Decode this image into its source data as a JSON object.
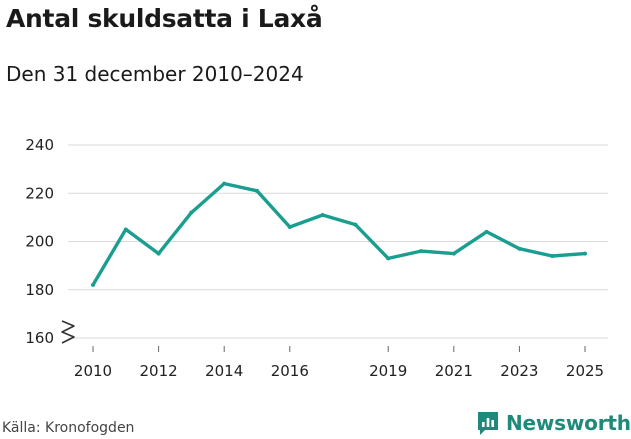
{
  "header": {
    "title": "Antal skuldsatta i Laxå",
    "subtitle": "Den 31 december 2010–2024"
  },
  "footer": {
    "source": "Källa: Kronofogden",
    "brand": "Newsworthy",
    "brand_icon": "newsworthy-logo-icon"
  },
  "colors": {
    "line": "#1a9e8f",
    "grid": "#d9d9d9",
    "brand": "#1f8a7a"
  },
  "chart_data": {
    "type": "line",
    "title": "Antal skuldsatta i Laxå",
    "subtitle": "Den 31 december 2010–2024",
    "x": [
      2010,
      2011,
      2012,
      2013,
      2014,
      2015,
      2016,
      2017,
      2018,
      2019,
      2020,
      2021,
      2022,
      2023,
      2024,
      2025
    ],
    "series": [
      {
        "values": [
          182,
          205,
          195,
          212,
          224,
          221,
          206,
          211,
          207,
          193,
          196,
          195,
          204,
          197,
          194,
          195
        ]
      }
    ],
    "xticks": [
      2010,
      2012,
      2014,
      2016,
      2019,
      2021,
      2023,
      2025
    ],
    "yticks": [
      160,
      180,
      200,
      220,
      240
    ],
    "ylim": [
      160,
      240
    ],
    "xlim": [
      2010,
      2025
    ],
    "axis_break": true,
    "grid": true,
    "legend": "none"
  }
}
